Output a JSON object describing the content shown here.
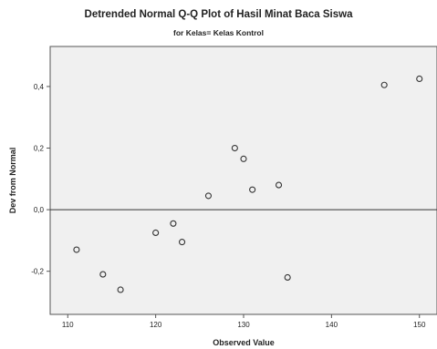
{
  "chart_data": {
    "type": "scatter",
    "title": "Detrended Normal Q-Q Plot of Hasil Minat Baca Siswa",
    "subtitle": "for Kelas= Kelas Kontrol",
    "xlabel": "Observed Value",
    "ylabel": "Dev from Normal",
    "xlim": [
      108,
      152
    ],
    "ylim": [
      -0.34,
      0.53
    ],
    "xticks": [
      110,
      120,
      130,
      140,
      150
    ],
    "xtick_labels": [
      "110",
      "120",
      "130",
      "140",
      "150"
    ],
    "yticks": [
      -0.2,
      0.0,
      0.2,
      0.4
    ],
    "ytick_labels": [
      "-0,2",
      "0,0",
      "0,2",
      "0,4"
    ],
    "reference_line_y": 0,
    "plot_background": "#f0f0f0",
    "marker_color": "#333333",
    "points": [
      {
        "x": 111,
        "y": -0.13
      },
      {
        "x": 114,
        "y": -0.21
      },
      {
        "x": 116,
        "y": -0.26
      },
      {
        "x": 120,
        "y": -0.075
      },
      {
        "x": 122,
        "y": -0.045
      },
      {
        "x": 123,
        "y": -0.105
      },
      {
        "x": 126,
        "y": 0.045
      },
      {
        "x": 129,
        "y": 0.2
      },
      {
        "x": 130,
        "y": 0.165
      },
      {
        "x": 131,
        "y": 0.065
      },
      {
        "x": 134,
        "y": 0.08
      },
      {
        "x": 135,
        "y": -0.22
      },
      {
        "x": 146,
        "y": 0.405
      },
      {
        "x": 150,
        "y": 0.425
      }
    ]
  }
}
